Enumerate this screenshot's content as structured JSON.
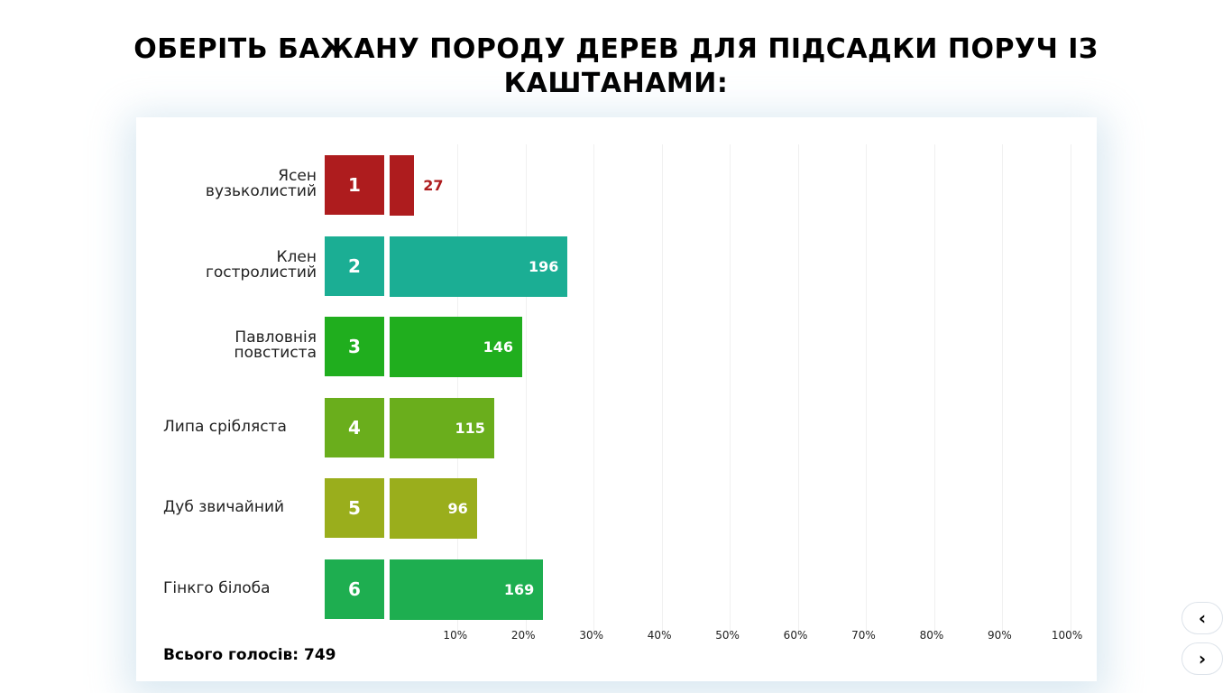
{
  "title": "ОБЕРІТЬ БАЖАНУ ПОРОДУ ДЕРЕВ ДЛЯ ПІДСАДКИ ПОРУЧ ІЗ КАШТАНАМИ:",
  "total_label": "Всього голосів: 749",
  "nav": {
    "prev": "‹",
    "next": "›"
  },
  "chart_data": {
    "type": "bar",
    "orientation": "horizontal",
    "title": "ОБЕРІТЬ БАЖАНУ ПОРОДУ ДЕРЕВ ДЛЯ ПІДСАДКИ ПОРУЧ ІЗ КАШТАНАМИ:",
    "total": 749,
    "xlim": [
      0,
      100
    ],
    "xticks": [
      "10%",
      "20%",
      "30%",
      "40%",
      "50%",
      "60%",
      "70%",
      "80%",
      "90%",
      "100%"
    ],
    "categories": [
      "Ясен\nвузьколистий",
      "Клен\nгостролистий",
      "Павловнія\nповстиста",
      "Липа срібляста",
      "Дуб звичайний",
      "Гінкго білоба"
    ],
    "numbers": [
      "1",
      "2",
      "3",
      "4",
      "5",
      "6"
    ],
    "values": [
      27,
      196,
      146,
      115,
      96,
      169
    ],
    "value_labels": [
      "27",
      "196",
      "146",
      "115",
      "96",
      "169"
    ],
    "colors": [
      "#ae1c1e",
      "#1bae94",
      "#20ae1e",
      "#6aae1c",
      "#9aae1c",
      "#1eae50"
    ]
  }
}
